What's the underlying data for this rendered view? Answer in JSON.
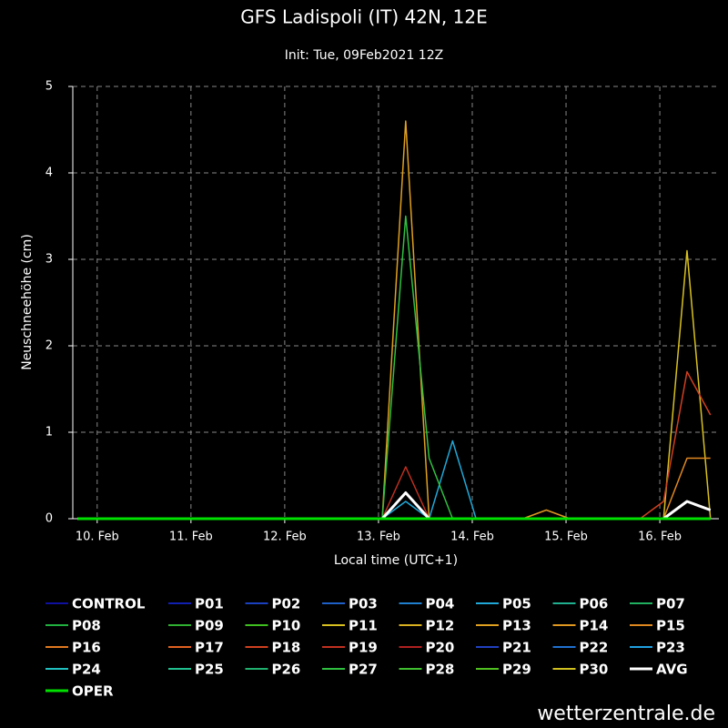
{
  "chart_data": {
    "type": "line",
    "title": "GFS Ladispoli (IT) 42N, 12E",
    "subtitle": "Init: Tue, 09Feb2021 12Z",
    "y_label": "Neuschneehöhe (cm)",
    "x_label": "Local time (UTC+1)",
    "watermark": "wetterzentrale.de",
    "xlim": [
      9.74,
      16.63
    ],
    "xticks": [
      {
        "value": 10,
        "label": "10. Feb"
      },
      {
        "value": 11,
        "label": "11. Feb"
      },
      {
        "value": 12,
        "label": "12. Feb"
      },
      {
        "value": 13,
        "label": "13. Feb"
      },
      {
        "value": 14,
        "label": "14. Feb"
      },
      {
        "value": 15,
        "label": "15. Feb"
      },
      {
        "value": 16,
        "label": "16. Feb"
      }
    ],
    "ylim": [
      0,
      5
    ],
    "yticks": [
      0,
      1,
      2,
      3,
      4,
      5
    ],
    "grid": true,
    "x": [
      9.79,
      10.04,
      10.29,
      10.54,
      10.79,
      11.04,
      11.29,
      11.54,
      11.79,
      12.04,
      12.29,
      12.54,
      12.79,
      13.04,
      13.29,
      13.54,
      13.79,
      14.04,
      14.29,
      14.54,
      14.79,
      15.04,
      15.29,
      15.54,
      15.79,
      16.04,
      16.29,
      16.54
    ],
    "series": [
      {
        "name": "CONTROL",
        "color": "#1010a0",
        "values": [
          0,
          0,
          0,
          0,
          0,
          0,
          0,
          0,
          0,
          0,
          0,
          0,
          0,
          0,
          0,
          0,
          0,
          0,
          0,
          0,
          0,
          0,
          0,
          0,
          0,
          0,
          0,
          0
        ]
      },
      {
        "name": "P01",
        "color": "#1020b0",
        "values": [
          0,
          0,
          0,
          0,
          0,
          0,
          0,
          0,
          0,
          0,
          0,
          0,
          0,
          0,
          0,
          0,
          0,
          0,
          0,
          0,
          0,
          0,
          0,
          0,
          0,
          0,
          0,
          0
        ]
      },
      {
        "name": "P02",
        "color": "#1a40c0",
        "values": [
          0,
          0,
          0,
          0,
          0,
          0,
          0,
          0,
          0,
          0,
          0,
          0,
          0,
          0,
          0,
          0,
          0,
          0,
          0,
          0,
          0,
          0,
          0,
          0,
          0,
          0,
          0,
          0
        ]
      },
      {
        "name": "P03",
        "color": "#1e60c8",
        "values": [
          0,
          0,
          0,
          0,
          0,
          0,
          0,
          0,
          0,
          0,
          0,
          0,
          0,
          0,
          0,
          0,
          0,
          0,
          0,
          0,
          0,
          0,
          0,
          0,
          0,
          0,
          0,
          0
        ]
      },
      {
        "name": "P04",
        "color": "#2080d0",
        "values": [
          0,
          0,
          0,
          0,
          0,
          0,
          0,
          0,
          0,
          0,
          0,
          0,
          0,
          0,
          0,
          0,
          0,
          0,
          0,
          0,
          0,
          0,
          0,
          0,
          0,
          0,
          0,
          0
        ]
      },
      {
        "name": "P05",
        "color": "#20a8d8",
        "values": [
          0,
          0,
          0,
          0,
          0,
          0,
          0,
          0,
          0,
          0,
          0,
          0,
          0,
          0,
          0.2,
          0,
          0.9,
          0,
          0,
          0,
          0,
          0,
          0,
          0,
          0,
          0,
          0,
          0
        ]
      },
      {
        "name": "P06",
        "color": "#20b090",
        "values": [
          0,
          0,
          0,
          0,
          0,
          0,
          0,
          0,
          0,
          0,
          0,
          0,
          0,
          0,
          0,
          0,
          0,
          0,
          0,
          0,
          0,
          0,
          0,
          0,
          0,
          0,
          0,
          0
        ]
      },
      {
        "name": "P07",
        "color": "#20b060",
        "values": [
          0,
          0,
          0,
          0,
          0,
          0,
          0,
          0,
          0,
          0,
          0,
          0,
          0,
          0,
          0,
          0,
          0,
          0,
          0,
          0,
          0,
          0,
          0,
          0,
          0,
          0,
          0,
          0
        ]
      },
      {
        "name": "P08",
        "color": "#20b040",
        "values": [
          0,
          0,
          0,
          0,
          0,
          0,
          0,
          0,
          0,
          0,
          0,
          0,
          0,
          0,
          0,
          0,
          0,
          0,
          0,
          0,
          0,
          0,
          0,
          0,
          0,
          0,
          0,
          0
        ]
      },
      {
        "name": "P09",
        "color": "#30b030",
        "values": [
          0,
          0,
          0,
          0,
          0,
          0,
          0,
          0,
          0,
          0,
          0,
          0,
          0,
          0,
          0,
          0,
          0,
          0,
          0,
          0,
          0,
          0,
          0,
          0,
          0,
          0,
          0,
          0
        ]
      },
      {
        "name": "P10",
        "color": "#40c020",
        "values": [
          0,
          0,
          0,
          0,
          0,
          0,
          0,
          0,
          0,
          0,
          0,
          0,
          0,
          0,
          0,
          0,
          0,
          0,
          0,
          0,
          0,
          0,
          0,
          0,
          0,
          0,
          0,
          0
        ]
      },
      {
        "name": "P11",
        "color": "#d8c020",
        "values": [
          0,
          0,
          0,
          0,
          0,
          0,
          0,
          0,
          0,
          0,
          0,
          0,
          0,
          0,
          0,
          0,
          0,
          0,
          0,
          0,
          0,
          0,
          0,
          0,
          0,
          0,
          3.1,
          0
        ]
      },
      {
        "name": "P12",
        "color": "#d8b020",
        "values": [
          0,
          0,
          0,
          0,
          0,
          0,
          0,
          0,
          0,
          0,
          0,
          0,
          0,
          0,
          0,
          0,
          0,
          0,
          0,
          0,
          0,
          0,
          0,
          0,
          0,
          0,
          0,
          0
        ]
      },
      {
        "name": "P13",
        "color": "#e0a020",
        "values": [
          0,
          0,
          0,
          0,
          0,
          0,
          0,
          0,
          0,
          0,
          0,
          0,
          0,
          0,
          4.6,
          0,
          0,
          0,
          0,
          0,
          0,
          0,
          0,
          0,
          0,
          0,
          0,
          0
        ]
      },
      {
        "name": "P14",
        "color": "#e09820",
        "values": [
          0,
          0,
          0,
          0,
          0,
          0,
          0,
          0,
          0,
          0,
          0,
          0,
          0,
          0,
          0,
          0,
          0,
          0,
          0,
          0,
          0.1,
          0,
          0,
          0,
          0,
          0,
          0,
          0
        ]
      },
      {
        "name": "P15",
        "color": "#e08820",
        "values": [
          0,
          0,
          0,
          0,
          0,
          0,
          0,
          0,
          0,
          0,
          0,
          0,
          0,
          0,
          0,
          0,
          0,
          0,
          0,
          0,
          0,
          0,
          0,
          0,
          0,
          0,
          0.7,
          0.7
        ]
      },
      {
        "name": "P16",
        "color": "#e07820",
        "values": [
          0,
          0,
          0,
          0,
          0,
          0,
          0,
          0,
          0,
          0,
          0,
          0,
          0,
          0,
          0,
          0,
          0,
          0,
          0,
          0,
          0,
          0,
          0,
          0,
          0,
          0,
          0,
          0
        ]
      },
      {
        "name": "P17",
        "color": "#e06020",
        "values": [
          0,
          0,
          0,
          0,
          0,
          0,
          0,
          0,
          0,
          0,
          0,
          0,
          0,
          0,
          0,
          0,
          0,
          0,
          0,
          0,
          0,
          0,
          0,
          0,
          0,
          0,
          0,
          0
        ]
      },
      {
        "name": "P18",
        "color": "#d04020",
        "values": [
          0,
          0,
          0,
          0,
          0,
          0,
          0,
          0,
          0,
          0,
          0,
          0,
          0,
          0,
          0,
          0,
          0,
          0,
          0,
          0,
          0,
          0,
          0,
          0,
          0,
          0.2,
          1.7,
          1.2
        ]
      },
      {
        "name": "P19",
        "color": "#c03020",
        "values": [
          0,
          0,
          0,
          0,
          0,
          0,
          0,
          0,
          0,
          0,
          0,
          0,
          0,
          0,
          0.6,
          0,
          0,
          0,
          0,
          0,
          0,
          0,
          0,
          0,
          0,
          0,
          0,
          0
        ]
      },
      {
        "name": "P20",
        "color": "#b02020",
        "values": [
          0,
          0,
          0,
          0,
          0,
          0,
          0,
          0,
          0,
          0,
          0,
          0,
          0,
          0,
          0,
          0,
          0,
          0,
          0,
          0,
          0,
          0,
          0,
          0,
          0,
          0,
          0,
          0
        ]
      },
      {
        "name": "P21",
        "color": "#2040c0",
        "values": [
          0,
          0,
          0,
          0,
          0,
          0,
          0,
          0,
          0,
          0,
          0,
          0,
          0,
          0,
          0,
          0,
          0,
          0,
          0,
          0,
          0,
          0,
          0,
          0,
          0,
          0,
          0,
          0
        ]
      },
      {
        "name": "P22",
        "color": "#2070d0",
        "values": [
          0,
          0,
          0,
          0,
          0,
          0,
          0,
          0,
          0,
          0,
          0,
          0,
          0,
          0,
          0,
          0,
          0,
          0,
          0,
          0,
          0,
          0,
          0,
          0,
          0,
          0,
          0,
          0
        ]
      },
      {
        "name": "P23",
        "color": "#20a0e0",
        "values": [
          0,
          0,
          0,
          0,
          0,
          0,
          0,
          0,
          0,
          0,
          0,
          0,
          0,
          0,
          0,
          0,
          0,
          0,
          0,
          0,
          0,
          0,
          0,
          0,
          0,
          0,
          0,
          0
        ]
      },
      {
        "name": "P24",
        "color": "#20c0c0",
        "values": [
          0,
          0,
          0,
          0,
          0,
          0,
          0,
          0,
          0,
          0,
          0,
          0,
          0,
          0,
          0,
          0,
          0,
          0,
          0,
          0,
          0,
          0,
          0,
          0,
          0,
          0,
          0,
          0
        ]
      },
      {
        "name": "P25",
        "color": "#20c090",
        "values": [
          0,
          0,
          0,
          0,
          0,
          0,
          0,
          0,
          0,
          0,
          0,
          0,
          0,
          0,
          0,
          0,
          0,
          0,
          0,
          0,
          0,
          0,
          0,
          0,
          0,
          0,
          0,
          0
        ]
      },
      {
        "name": "P26",
        "color": "#20b070",
        "values": [
          0,
          0,
          0,
          0,
          0,
          0,
          0,
          0,
          0,
          0,
          0,
          0,
          0,
          0,
          0,
          0,
          0,
          0,
          0,
          0,
          0,
          0,
          0,
          0,
          0,
          0,
          0,
          0
        ]
      },
      {
        "name": "P27",
        "color": "#30c040",
        "values": [
          0,
          0,
          0,
          0,
          0,
          0,
          0,
          0,
          0,
          0,
          0,
          0,
          0,
          0,
          3.5,
          0.7,
          0,
          0,
          0,
          0,
          0,
          0,
          0,
          0,
          0,
          0,
          0,
          0
        ]
      },
      {
        "name": "P28",
        "color": "#40c030",
        "values": [
          0,
          0,
          0,
          0,
          0,
          0,
          0,
          0,
          0,
          0,
          0,
          0,
          0,
          0,
          0,
          0,
          0,
          0,
          0,
          0,
          0,
          0,
          0,
          0,
          0,
          0,
          0,
          0
        ]
      },
      {
        "name": "P29",
        "color": "#50c020",
        "values": [
          0,
          0,
          0,
          0,
          0,
          0,
          0,
          0,
          0,
          0,
          0,
          0,
          0,
          0,
          0,
          0,
          0,
          0,
          0,
          0,
          0,
          0,
          0,
          0,
          0,
          0,
          0,
          0
        ]
      },
      {
        "name": "P30",
        "color": "#d0c020",
        "values": [
          0,
          0,
          0,
          0,
          0,
          0,
          0,
          0,
          0,
          0,
          0,
          0,
          0,
          0,
          0,
          0,
          0,
          0,
          0,
          0,
          0,
          0,
          0,
          0,
          0,
          0,
          0,
          0
        ]
      },
      {
        "name": "AVG",
        "color": "#ffffff",
        "linewidth": 3,
        "values": [
          0,
          0,
          0,
          0,
          0,
          0,
          0,
          0,
          0,
          0,
          0,
          0,
          0,
          0,
          0.3,
          0,
          0,
          0,
          0,
          0,
          0,
          0,
          0,
          0,
          0,
          0,
          0.2,
          0.1
        ]
      },
      {
        "name": "OPER",
        "color": "#00e000",
        "linewidth": 3,
        "values": [
          0,
          0,
          0,
          0,
          0,
          0,
          0,
          0,
          0,
          0,
          0,
          0,
          0,
          0,
          0,
          0,
          0,
          0,
          0,
          0,
          0,
          0,
          0,
          0,
          0,
          0,
          0,
          0
        ]
      }
    ]
  }
}
